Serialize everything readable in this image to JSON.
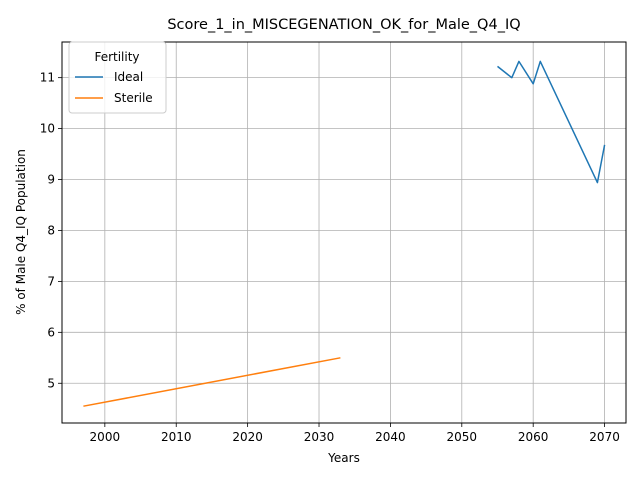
{
  "chart_data": {
    "type": "line",
    "title": "Score_1_in_MISCEGENATION_OK_for_Male_Q4_IQ",
    "xlabel": "Years",
    "ylabel": "% of Male Q4_IQ Population",
    "xlim": [
      1994,
      2073
    ],
    "ylim": [
      4.22,
      11.7
    ],
    "xticks": [
      2000,
      2010,
      2020,
      2030,
      2040,
      2050,
      2060,
      2070
    ],
    "yticks": [
      5,
      6,
      7,
      8,
      9,
      10,
      11
    ],
    "grid": true,
    "legend": {
      "title": "Fertility",
      "placement": "upper-left"
    },
    "series": [
      {
        "name": "Ideal",
        "color": "#1f77b4",
        "x": [
          2055,
          2057,
          2058,
          2060,
          2061,
          2069,
          2070
        ],
        "y": [
          11.22,
          11.0,
          11.32,
          10.88,
          11.32,
          8.94,
          9.68
        ]
      },
      {
        "name": "Sterile",
        "color": "#ff7f0e",
        "x": [
          1997,
          2033
        ],
        "y": [
          4.55,
          5.5
        ]
      }
    ]
  }
}
